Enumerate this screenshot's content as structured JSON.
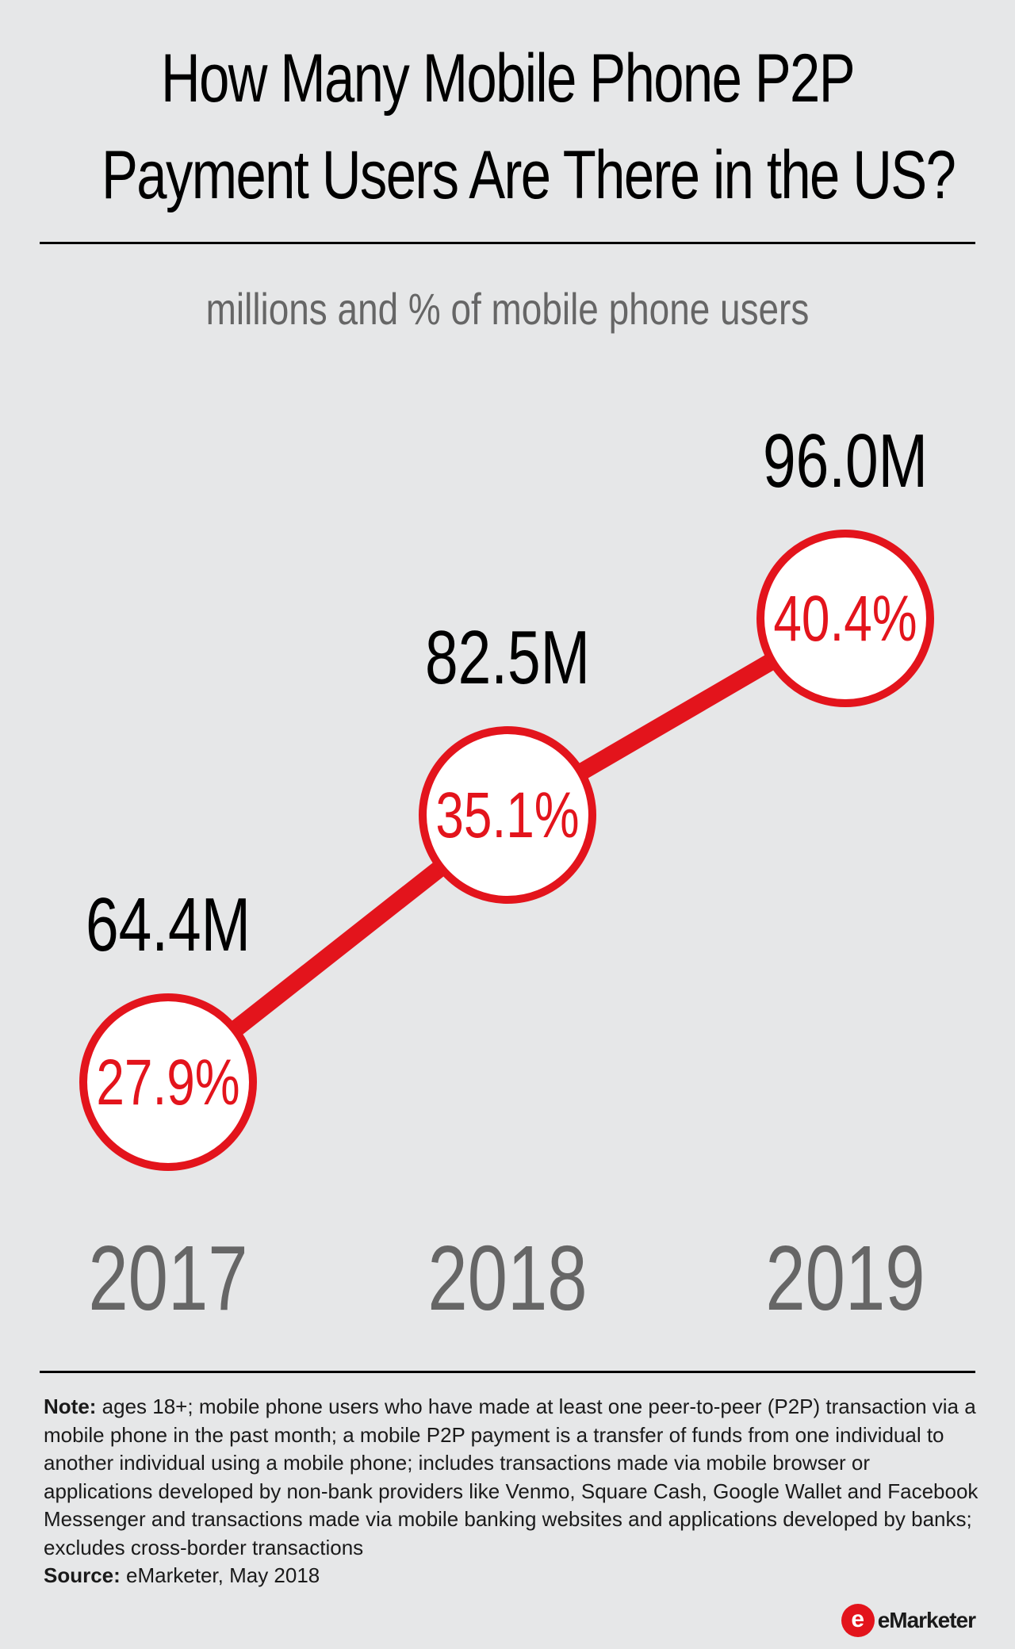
{
  "chart_data": {
    "type": "line",
    "title": "How Many Mobile Phone P2P Payment Users Are There in the US?",
    "title_lines": [
      "How Many Mobile Phone P2P",
      "Payment Users Are There in the US?"
    ],
    "subtitle": "millions and % of mobile phone users",
    "categories": [
      "2017",
      "2018",
      "2019"
    ],
    "series": [
      {
        "values": [
          27.9,
          35.1,
          40.4
        ],
        "value_labels": [
          "27.9%",
          "35.1%",
          "40.4%"
        ]
      },
      {
        "values": [
          64.4,
          82.5,
          96.0
        ],
        "value_labels": [
          "64.4M",
          "82.5M",
          "96.0M"
        ]
      }
    ],
    "colors": {
      "line": "#e3141c",
      "circle_fill": "#ffffff",
      "pct_text": "#e3141c",
      "count_text": "#000000",
      "year_text": "#666666",
      "background": "#e6e7e8"
    }
  },
  "note": {
    "label": "Note:",
    "text": " ages 18+; mobile phone users who have made at least one peer-to-peer (P2P) transaction via a mobile phone in the past month; a mobile P2P payment is a transfer of funds from one individual to another individual using a mobile phone; includes transactions made via mobile browser or applications developed by non-bank providers like Venmo, Square Cash, Google Wallet and Facebook Messenger and transactions made via mobile banking websites and applications developed by banks; excludes cross-border transactions"
  },
  "source": {
    "label": "Source:",
    "text": " eMarketer, May 2018"
  },
  "logo": {
    "mark": "e",
    "text": "eMarketer",
    "icon": "emarketer-logo-icon"
  }
}
